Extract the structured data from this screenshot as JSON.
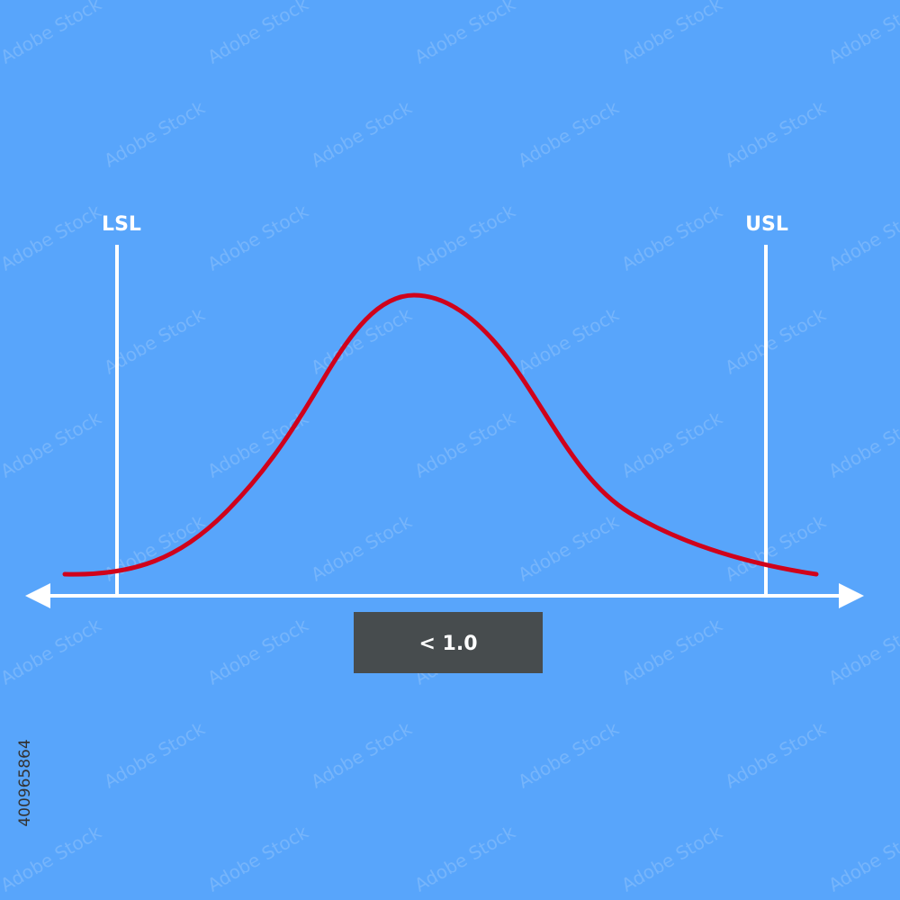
{
  "labels": {
    "lsl": "LSL",
    "usl": "USL"
  },
  "result": "< 1.0",
  "watermark": "Adobe Stock",
  "stock_id": "400965864"
}
